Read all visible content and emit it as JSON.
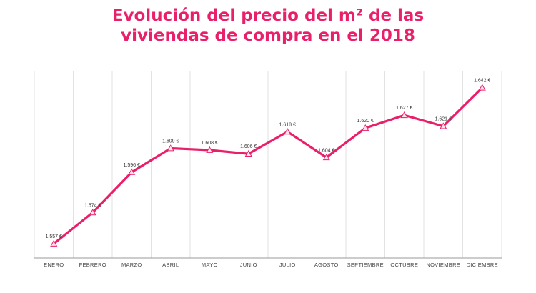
{
  "colors": {
    "accent": "#ea1f6a",
    "grid": "#e2e2e2",
    "marker_fill": "#fbe3ec"
  },
  "chart_data": {
    "type": "line",
    "title_line1": "Evolución del precio del m² de las",
    "title_line2": "viviendas de compra en el 2018",
    "categories": [
      "ENERO",
      "FEBRERO",
      "MARZO",
      "ABRIL",
      "MAYO",
      "JUNIO",
      "JULIO",
      "AGOSTO",
      "SEPTIEMBRE",
      "OCTUBRE",
      "NOVIEMBRE",
      "DICIEMBRE"
    ],
    "values": [
      1557,
      1574,
      1596,
      1609,
      1608,
      1606,
      1618,
      1604,
      1620,
      1627,
      1621,
      1642
    ],
    "value_labels": [
      "1.557 €",
      "1.574 €",
      "1.596 €",
      "1.609 €",
      "1.608 €",
      "1.606 €",
      "1.618 €",
      "1.604 €",
      "1.620 €",
      "1.627 €",
      "1.621 €",
      "1.642 €"
    ],
    "xlabel": "",
    "ylabel": "",
    "ylim": [
      1550,
      1645
    ],
    "grid": "vertical"
  }
}
